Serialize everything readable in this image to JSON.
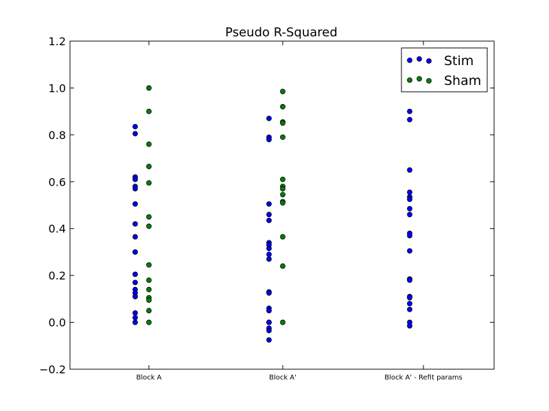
{
  "chart_data": {
    "type": "scatter",
    "title": "Pseudo R-Squared",
    "xlabel": "",
    "ylabel": "",
    "categories": [
      "Block A",
      "Block A'",
      "Block A' - Refit params"
    ],
    "ylim": [
      -0.2,
      1.2
    ],
    "yticks": [
      "−0.2",
      "0.0",
      "0.2",
      "0.4",
      "0.6",
      "0.8",
      "1.0",
      "1.2"
    ],
    "grid": false,
    "legend_position": "top-right",
    "series": [
      {
        "name": "Stim",
        "color": "#0000ff",
        "points": [
          {
            "category": 0,
            "values": [
              0.835,
              0.805,
              0.62,
              0.61,
              0.58,
              0.57,
              0.505,
              0.42,
              0.365,
              0.3,
              0.205,
              0.17,
              0.14,
              0.125,
              0.11,
              0.04,
              0.02,
              0.0
            ]
          },
          {
            "category": 1,
            "values": [
              0.87,
              0.79,
              0.78,
              0.505,
              0.46,
              0.435,
              0.34,
              0.33,
              0.315,
              0.29,
              0.27,
              0.13,
              0.125,
              0.06,
              0.05,
              0.0,
              0.0,
              -0.025,
              -0.035,
              -0.075
            ]
          },
          {
            "category": 2,
            "values": [
              0.9,
              0.865,
              0.65,
              0.555,
              0.535,
              0.525,
              0.485,
              0.46,
              0.38,
              0.37,
              0.305,
              0.185,
              0.18,
              0.11,
              0.105,
              0.08,
              0.055,
              0.0,
              -0.015
            ]
          }
        ]
      },
      {
        "name": "Sham",
        "color": "#008000",
        "points": [
          {
            "category": 0,
            "values": [
              1.0,
              0.9,
              0.76,
              0.665,
              0.595,
              0.45,
              0.41,
              0.245,
              0.18,
              0.14,
              0.105,
              0.095,
              0.05,
              0.0
            ]
          },
          {
            "category": 1,
            "values": [
              0.985,
              0.92,
              0.855,
              0.85,
              0.79,
              0.61,
              0.58,
              0.57,
              0.545,
              0.515,
              0.51,
              0.365,
              0.24,
              0.0
            ]
          }
        ]
      }
    ]
  }
}
